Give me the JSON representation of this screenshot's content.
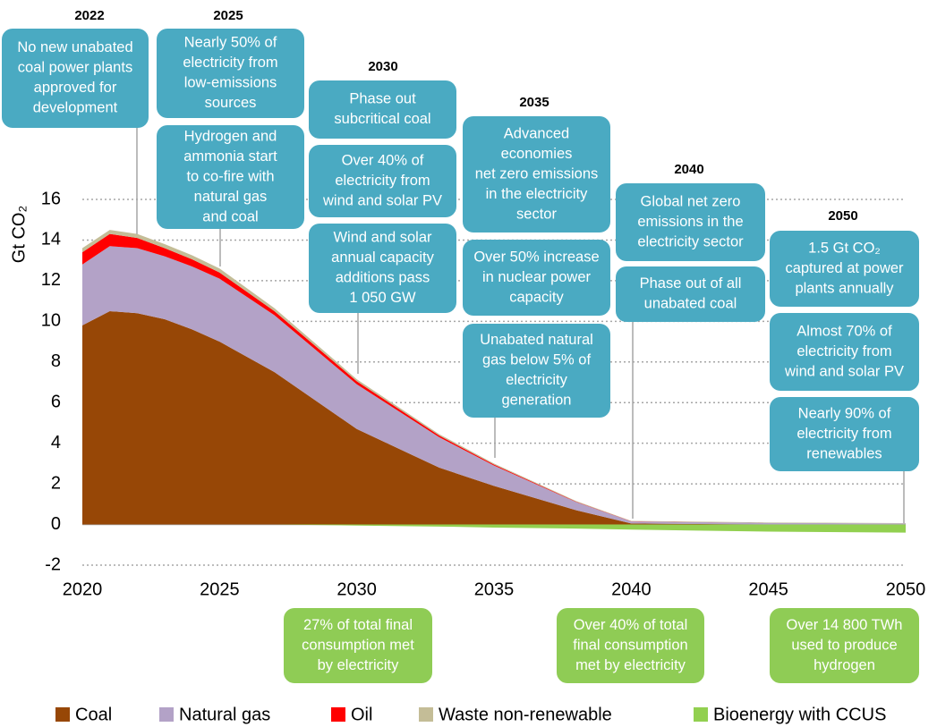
{
  "chart_data": {
    "type": "area",
    "y_label": "Gt CO₂",
    "x": [
      2020,
      2021,
      2022,
      2023,
      2024,
      2025,
      2027,
      2030,
      2033,
      2035,
      2038,
      2040,
      2045,
      2050
    ],
    "series": [
      {
        "name": "Coal",
        "color": "#974706",
        "values": [
          9.8,
          10.5,
          10.4,
          10.1,
          9.6,
          9.0,
          7.5,
          4.7,
          2.8,
          1.9,
          0.7,
          0.05,
          0,
          0
        ]
      },
      {
        "name": "Natural gas",
        "color": "#b3a2c7",
        "values": [
          3.0,
          3.2,
          3.2,
          3.1,
          3.1,
          3.1,
          2.8,
          2.2,
          1.5,
          1.0,
          0.4,
          0.1,
          0.08,
          0.05
        ]
      },
      {
        "name": "Oil",
        "color": "#ff0000",
        "values": [
          0.6,
          0.6,
          0.5,
          0.4,
          0.35,
          0.3,
          0.2,
          0.15,
          0.08,
          0.05,
          0.02,
          0.01,
          0,
          0
        ]
      },
      {
        "name": "Waste non-renewable",
        "color": "#c4bd97",
        "values": [
          0.2,
          0.2,
          0.2,
          0.2,
          0.2,
          0.2,
          0.15,
          0.1,
          0.07,
          0.05,
          0.03,
          0.02,
          0.02,
          0.02
        ]
      },
      {
        "name": "Bioenergy with CCUS",
        "color": "#92d050",
        "values": [
          0,
          0,
          0,
          0,
          0,
          0,
          0,
          -0.05,
          -0.1,
          -0.15,
          -0.2,
          -0.25,
          -0.35,
          -0.4
        ]
      }
    ],
    "xlim": [
      2020,
      2050
    ],
    "xticks": [
      2020,
      2025,
      2030,
      2035,
      2040,
      2045,
      2050
    ],
    "ylim": [
      -2,
      16
    ],
    "yticks": [
      -2,
      0,
      2,
      4,
      6,
      8,
      10,
      12,
      14,
      16
    ],
    "grid": true,
    "legend": "bottom",
    "annotations": [
      {
        "year": "2022",
        "notes": [
          [
            "No new unabated",
            "coal power plants",
            "approved for",
            "development"
          ]
        ]
      },
      {
        "year": "2025",
        "notes": [
          [
            "Nearly 50% of",
            "electricity from",
            "low-emissions",
            "sources"
          ],
          [
            "Hydrogen and",
            "ammonia start",
            "to co-fire with",
            "natural gas",
            "and coal"
          ]
        ]
      },
      {
        "year": "2030",
        "notes": [
          [
            "Phase out",
            "subcritical coal"
          ],
          [
            "Over 40% of",
            "electricity from",
            "wind and solar PV"
          ],
          [
            "Wind and solar",
            "annual capacity",
            "additions pass",
            "1 050 GW"
          ]
        ]
      },
      {
        "year": "2035",
        "notes": [
          [
            "Advanced",
            "economies",
            "net zero emissions",
            "in the electricity",
            "sector"
          ],
          [
            "Over 50% increase",
            "in nuclear power",
            "capacity"
          ],
          [
            "Unabated natural",
            "gas below 5% of",
            "electricity",
            "generation"
          ]
        ]
      },
      {
        "year": "2040",
        "notes": [
          [
            "Global net zero",
            "emissions in the",
            "electricity sector"
          ],
          [
            "Phase out of all",
            "unabated coal"
          ]
        ]
      },
      {
        "year": "2050",
        "notes": [
          [
            "1.5 Gt CO₂",
            "captured at power",
            "plants annually"
          ],
          [
            "Almost 70% of",
            "electricity from",
            "wind and solar PV"
          ],
          [
            "Nearly 90% of",
            "electricity from",
            "renewables"
          ]
        ]
      }
    ],
    "bottom_notes": [
      [
        "27% of total final",
        "consumption met",
        "by electricity"
      ],
      [
        "Over 40% of  total",
        "final consumption",
        "met by electricity"
      ],
      [
        "Over 14 800 TWh",
        "used to produce",
        "hydrogen"
      ]
    ]
  }
}
